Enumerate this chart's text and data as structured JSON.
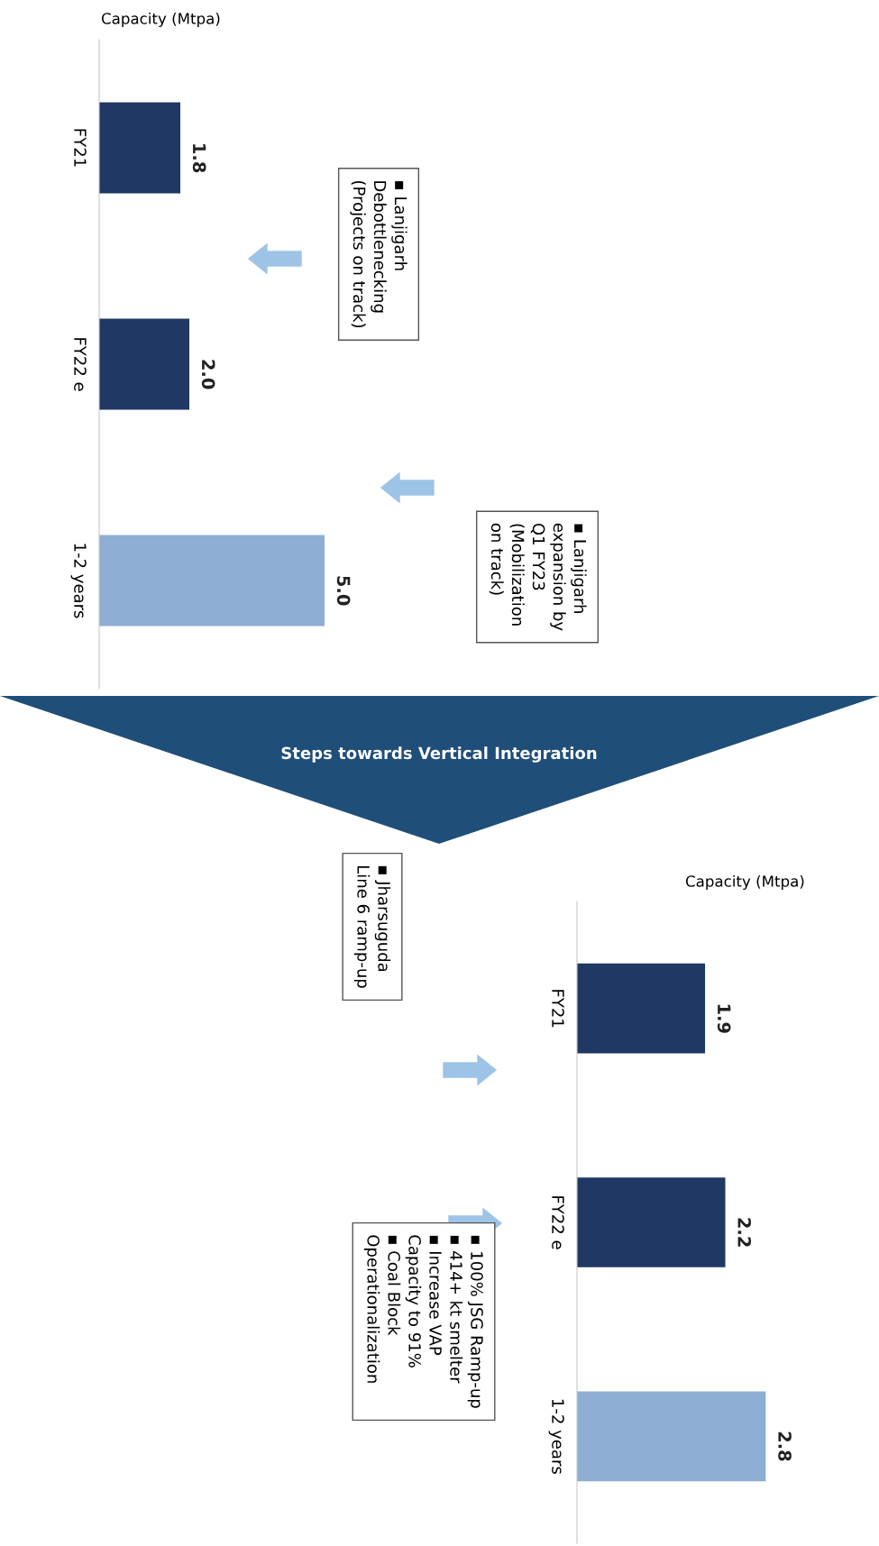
{
  "chart_data": [
    {
      "type": "bar",
      "orientation": "horizontal",
      "title": "Capacity (Mtpa)",
      "categories": [
        "FY21",
        "FY22 e",
        "1-2 years"
      ],
      "colors": [
        "#1f3864",
        "#1f3864",
        "#8eaed3"
      ],
      "values": [
        1.8,
        2.0,
        5.0
      ],
      "value_labels": [
        "1.8",
        "2.0",
        "5.0"
      ],
      "tick_labels": "y",
      "grid": false,
      "legend": false,
      "annotations": [
        "▪ Lanjigarh\nDebottlenecking\n(Projects on track)",
        "▪ Lanjigarh\nexpansion by\nQ1 FY23\n(Mobilization\non track)",
        "Steps towards Vertical Integration"
      ]
    },
    {
      "type": "bar",
      "orientation": "horizontal",
      "title": "Capacity (Mtpa)",
      "categories": [
        "FY21",
        "FY22 e",
        "1-2 years"
      ],
      "colors": [
        "#1f3864",
        "#1f3864",
        "#8eaed3"
      ],
      "values": [
        1.9,
        2.2,
        2.8
      ],
      "value_labels": [
        "1.9",
        "2.2",
        "2.8"
      ],
      "tick_labels": "y",
      "grid": false,
      "legend": false,
      "annotations": [
        "▪ Jharsuguda\nLine 6 ramp-up",
        "▪ 100% JSG Ramp-up\n▪ 414+ kt smelter\n▪ Increase VAP\nCapacity to 91%\n▪ Coal Block\nOperationalization"
      ]
    }
  ]
}
